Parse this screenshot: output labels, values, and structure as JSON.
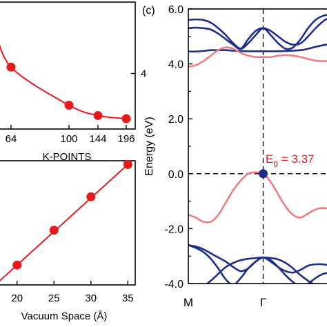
{
  "colors": {
    "axis": "#000000",
    "red": "#e8191a",
    "band_red": "#ef7e7e",
    "band_blue": "#1c2d8c",
    "vbm_point": "#1c2d8c",
    "dashed": "#000000"
  },
  "chart_data": [
    {
      "panel": "top-left",
      "type": "line",
      "xlabel": "K-POINTS",
      "ylabel": "",
      "categories": [
        "64",
        "100",
        "144",
        "196"
      ],
      "x_tick_labels": [
        "64",
        "100",
        "144",
        "196"
      ],
      "y_tick_labels": [
        "4"
      ],
      "ylim": [
        3.3,
        4.9
      ],
      "series": [
        {
          "x": [
            64,
            100,
            144,
            196
          ],
          "values": [
            4.08,
            3.6,
            3.47,
            3.43
          ]
        }
      ],
      "marker": "circle",
      "color": "#e8191a"
    },
    {
      "panel": "bottom-left",
      "type": "line",
      "xlabel": "Vacuum Space (Å)",
      "ylabel": "",
      "x": [
        20,
        25,
        30,
        35
      ],
      "x_tick_labels": [
        "20",
        "25",
        "30",
        "35"
      ],
      "y_tick_labels": [],
      "xlim": [
        17.5,
        36.0
      ],
      "ylim": [
        0,
        1
      ],
      "series": [
        {
          "x": [
            20,
            25,
            30,
            35
          ],
          "values": [
            0.16,
            0.44,
            0.71,
            0.97
          ]
        }
      ],
      "marker": "circle",
      "color": "#e8191a"
    },
    {
      "panel": "right",
      "panel_label": "(c)",
      "type": "line",
      "title": "",
      "ylabel": "Energy (eV)",
      "x_tick_labels": [
        "M",
        "Γ"
      ],
      "y_tick_labels": [
        "6.0",
        "4.0",
        "2.0",
        "0.0",
        "-2.0",
        "-4.0"
      ],
      "ylim": [
        -4.0,
        6.0
      ],
      "xlim": [
        0,
        1
      ],
      "dashed_lines": {
        "horizontal_y": 0.0,
        "vertical_x": 0.5
      },
      "annotation": {
        "label": "E",
        "subscript": "g",
        "text": " = 3.37",
        "x": 0.5,
        "y": 0.0
      },
      "vbm_point": {
        "x": 0.5,
        "y": 0.0
      },
      "series": [
        {
          "color": "#1c2d8c",
          "x": [
            0,
            0.05,
            0.1,
            0.15,
            0.2,
            0.25,
            0.3,
            0.35,
            0.4,
            0.45,
            0.5,
            0.55,
            0.6,
            0.65,
            0.7,
            0.75,
            0.8,
            0.85,
            0.9,
            0.95,
            1.0
          ],
          "values": [
            5.6,
            5.62,
            5.6,
            5.5,
            5.3,
            5.05,
            4.75,
            4.55,
            4.75,
            5.05,
            5.3,
            5.05,
            4.75,
            4.55,
            4.6,
            4.9,
            5.3,
            5.6,
            5.75,
            5.8,
            5.8
          ]
        },
        {
          "color": "#1c2d8c",
          "x": [
            0,
            0.05,
            0.1,
            0.15,
            0.2,
            0.25,
            0.3,
            0.35,
            0.4,
            0.45,
            0.5,
            0.55,
            0.6,
            0.65,
            0.7,
            0.75,
            0.8,
            0.85,
            0.9,
            0.95,
            1.0
          ],
          "values": [
            5.3,
            5.32,
            5.3,
            5.25,
            5.1,
            4.9,
            4.7,
            4.55,
            4.9,
            5.2,
            5.3,
            5.2,
            5.0,
            4.8,
            4.7,
            4.75,
            5.0,
            5.3,
            5.55,
            5.7,
            5.75
          ]
        },
        {
          "color": "#1c2d8c",
          "x": [
            0,
            0.05,
            0.1,
            0.15,
            0.2,
            0.25,
            0.3,
            0.35,
            0.4,
            0.45,
            0.5,
            0.55,
            0.6,
            0.65,
            0.7,
            0.75,
            0.8,
            0.85,
            0.9,
            0.95,
            1.0
          ],
          "values": [
            4.45,
            4.45,
            4.47,
            4.5,
            4.5,
            4.5,
            4.48,
            4.47,
            4.46,
            4.46,
            4.46,
            4.46,
            4.46,
            4.47,
            4.48,
            4.5,
            4.55,
            4.62,
            4.68,
            4.72,
            4.73
          ]
        },
        {
          "color": "#ef7e7e",
          "x": [
            0,
            0.05,
            0.1,
            0.15,
            0.2,
            0.25,
            0.3,
            0.35,
            0.4,
            0.45,
            0.5,
            0.55,
            0.6,
            0.65,
            0.7,
            0.75,
            0.8,
            0.85,
            0.9,
            0.95,
            1.0
          ],
          "values": [
            3.9,
            3.95,
            4.1,
            4.3,
            4.5,
            4.6,
            4.55,
            4.4,
            4.3,
            4.25,
            4.25,
            4.25,
            4.3,
            4.32,
            4.3,
            4.25,
            4.18,
            4.12,
            4.1,
            4.1,
            4.1
          ]
        },
        {
          "color": "#ef7e7e",
          "x": [
            0,
            0.05,
            0.1,
            0.15,
            0.2,
            0.25,
            0.3,
            0.35,
            0.4,
            0.45,
            0.5,
            0.55,
            0.6,
            0.65,
            0.7,
            0.75,
            0.8,
            0.85,
            0.9,
            0.95,
            1.0
          ],
          "values": [
            -1.5,
            -1.6,
            -1.75,
            -1.75,
            -1.5,
            -1.05,
            -0.6,
            -0.25,
            0.0,
            0.05,
            0.0,
            -0.3,
            -0.75,
            -1.2,
            -1.5,
            -1.6,
            -1.45,
            -1.3,
            -1.25,
            -1.3,
            -1.45
          ]
        },
        {
          "color": "#1c2d8c",
          "x": [
            0,
            0.05,
            0.1,
            0.15,
            0.2,
            0.25,
            0.3,
            0.35,
            0.4,
            0.45,
            0.5,
            0.55,
            0.6,
            0.65,
            0.7,
            0.75,
            0.8,
            0.85,
            0.9,
            0.95,
            1.0
          ],
          "values": [
            -2.6,
            -2.65,
            -2.75,
            -2.9,
            -3.05,
            -3.2,
            -3.4,
            -3.55,
            -3.45,
            -3.2,
            -3.05,
            -3.2,
            -3.4,
            -3.55,
            -3.6,
            -3.5,
            -3.35,
            -3.3,
            -3.3,
            -3.35,
            -3.4
          ]
        },
        {
          "color": "#1c2d8c",
          "x": [
            0,
            0.05,
            0.1,
            0.15,
            0.2,
            0.25,
            0.3,
            0.35,
            0.4,
            0.45,
            0.5,
            0.55,
            0.6,
            0.65,
            0.7,
            0.75,
            0.8,
            0.85,
            0.9,
            0.95,
            1.0
          ],
          "values": [
            -2.6,
            -2.7,
            -2.85,
            -3.1,
            -3.45,
            -3.85,
            -4.05,
            -3.8,
            -3.45,
            -3.2,
            -3.05,
            -3.15,
            -3.4,
            -3.7,
            -3.95,
            -4.1,
            -4.0,
            -3.8,
            -3.65,
            -3.6,
            -3.6
          ]
        },
        {
          "color": "#1c2d8c",
          "x": [
            0,
            0.05,
            0.1,
            0.15,
            0.2,
            0.25,
            0.3,
            0.35,
            0.4,
            0.45,
            0.5,
            0.55,
            0.6,
            0.65,
            0.7,
            0.75,
            0.8,
            0.85,
            0.9,
            0.95,
            1.0
          ],
          "values": [
            -4.3,
            -4.25,
            -4.1,
            -3.9,
            -3.65,
            -3.4,
            -3.25,
            -3.15,
            -3.1,
            -3.07,
            -3.05,
            -3.07,
            -3.12,
            -3.25,
            -3.45,
            -3.7,
            -3.9,
            -4.05,
            -4.1,
            -4.1,
            -4.1
          ]
        }
      ]
    }
  ]
}
